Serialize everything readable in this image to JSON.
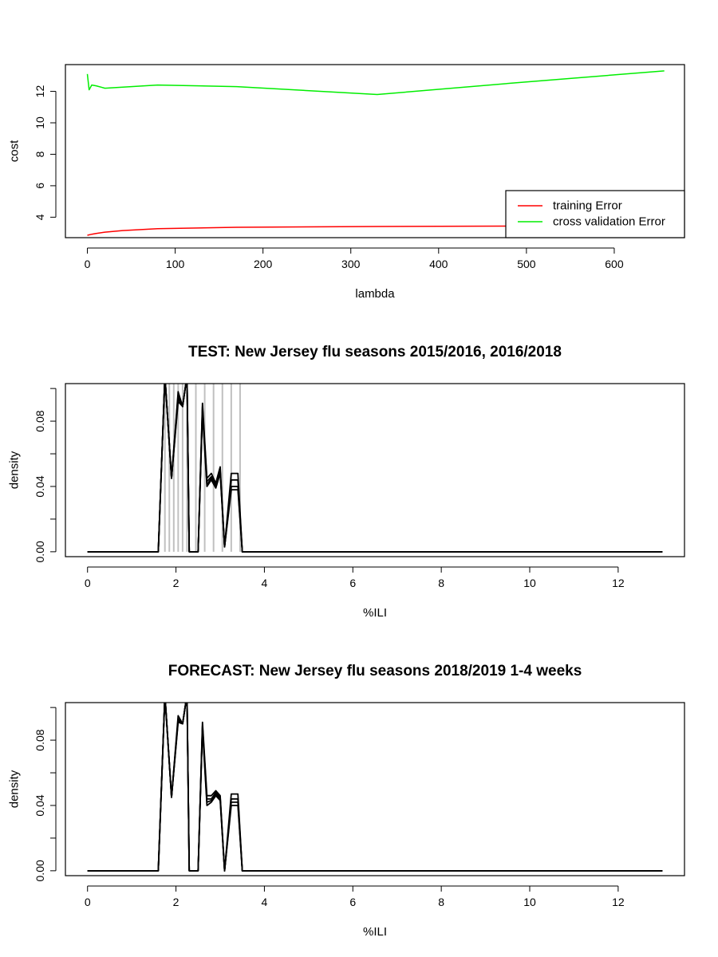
{
  "chart_data": [
    {
      "type": "line",
      "title": "",
      "xlabel": "lambda",
      "ylabel": "cost",
      "xlim": [
        -25,
        680
      ],
      "ylim": [
        2.7,
        13.7
      ],
      "xticks": [
        0,
        100,
        200,
        300,
        400,
        500,
        600
      ],
      "yticks": [
        4,
        6,
        8,
        10,
        12
      ],
      "legend": {
        "position": "bottom-right",
        "entries": [
          {
            "label": "training Error",
            "color": "#ff0000"
          },
          {
            "label": "cross validation Error",
            "color": "#00ee00"
          }
        ]
      },
      "series": [
        {
          "name": "training Error",
          "color": "#ff0000",
          "x": [
            0,
            5,
            10,
            20,
            40,
            80,
            170,
            330,
            500,
            657
          ],
          "y": [
            2.85,
            2.92,
            2.97,
            3.05,
            3.15,
            3.27,
            3.36,
            3.41,
            3.44,
            3.47
          ]
        },
        {
          "name": "cross validation Error",
          "color": "#00ee00",
          "x": [
            0,
            2,
            5,
            10,
            20,
            80,
            170,
            330,
            500,
            657
          ],
          "y": [
            13.1,
            12.1,
            12.4,
            12.35,
            12.2,
            12.4,
            12.3,
            11.8,
            12.6,
            13.3
          ]
        }
      ]
    },
    {
      "type": "line",
      "title": "TEST: New Jersey  flu seasons 2015/2016, 2016/2018",
      "xlabel": "%ILI",
      "ylabel": "density",
      "xlim": [
        -0.5,
        13.5
      ],
      "ylim": [
        -0.003,
        0.103
      ],
      "xticks": [
        0,
        2,
        4,
        6,
        8,
        10,
        12
      ],
      "yticks": [
        0.0,
        0.02,
        0.04,
        0.06,
        0.08,
        0.1
      ],
      "ytick_labels": [
        "0.00",
        "",
        "0.04",
        "",
        "0.08",
        ""
      ],
      "vlines": {
        "color": "#c0c0c0",
        "x": [
          1.75,
          1.85,
          1.95,
          2.05,
          2.15,
          2.25,
          2.45,
          2.65,
          2.85,
          3.05,
          3.25,
          3.45
        ]
      },
      "series": [
        {
          "name": "",
          "color": "#000000",
          "x": [
            0,
            1.6,
            1.75,
            1.9,
            2.05,
            2.15,
            2.25,
            2.3,
            2.5,
            2.6,
            2.7,
            2.8,
            2.9,
            3.0,
            3.1,
            3.25,
            3.4,
            3.5,
            13
          ],
          "y": [
            0,
            0,
            0.108,
            0.045,
            0.098,
            0.089,
            0.108,
            0,
            0,
            0.091,
            0.045,
            0.048,
            0.042,
            0.052,
            0.003,
            0.048,
            0.048,
            0,
            0
          ]
        },
        {
          "name": "",
          "color": "#000000",
          "x": [
            0,
            1.6,
            1.75,
            1.9,
            2.05,
            2.15,
            2.25,
            2.3,
            2.5,
            2.6,
            2.7,
            2.8,
            2.9,
            3.0,
            3.1,
            3.25,
            3.4,
            3.5,
            13
          ],
          "y": [
            0,
            0,
            0.108,
            0.045,
            0.096,
            0.089,
            0.108,
            0,
            0,
            0.089,
            0.043,
            0.046,
            0.041,
            0.05,
            0.003,
            0.044,
            0.044,
            0,
            0
          ]
        },
        {
          "name": "",
          "color": "#000000",
          "x": [
            0,
            1.6,
            1.75,
            1.9,
            2.05,
            2.15,
            2.25,
            2.3,
            2.5,
            2.6,
            2.7,
            2.8,
            2.9,
            3.0,
            3.1,
            3.25,
            3.4,
            3.5,
            13
          ],
          "y": [
            0,
            0,
            0.108,
            0.045,
            0.094,
            0.089,
            0.108,
            0,
            0,
            0.087,
            0.041,
            0.045,
            0.04,
            0.049,
            0.003,
            0.04,
            0.04,
            0,
            0
          ]
        },
        {
          "name": "",
          "color": "#000000",
          "x": [
            0,
            1.6,
            1.75,
            1.9,
            2.05,
            2.15,
            2.25,
            2.3,
            2.5,
            2.6,
            2.7,
            2.8,
            2.9,
            3.0,
            3.1,
            3.25,
            3.4,
            3.5,
            13
          ],
          "y": [
            0,
            0,
            0.108,
            0.045,
            0.092,
            0.089,
            0.108,
            0,
            0,
            0.085,
            0.04,
            0.044,
            0.039,
            0.048,
            0.003,
            0.038,
            0.038,
            0,
            0
          ]
        }
      ]
    },
    {
      "type": "line",
      "title": "FORECAST: New Jersey flu seasons 2018/2019 1-4 weeks",
      "xlabel": "%ILI",
      "ylabel": "density",
      "xlim": [
        -0.5,
        13.5
      ],
      "ylim": [
        -0.003,
        0.103
      ],
      "xticks": [
        0,
        2,
        4,
        6,
        8,
        10,
        12
      ],
      "yticks": [
        0.0,
        0.02,
        0.04,
        0.06,
        0.08,
        0.1
      ],
      "ytick_labels": [
        "0.00",
        "",
        "0.04",
        "",
        "0.08",
        ""
      ],
      "series": [
        {
          "name": "",
          "color": "#000000",
          "x": [
            0,
            1.6,
            1.75,
            1.9,
            2.05,
            2.15,
            2.25,
            2.3,
            2.5,
            2.6,
            2.7,
            2.8,
            2.9,
            3.0,
            3.1,
            3.25,
            3.4,
            3.5,
            13
          ],
          "y": [
            0,
            0,
            0.108,
            0.045,
            0.095,
            0.09,
            0.108,
            0,
            0,
            0.091,
            0.046,
            0.046,
            0.049,
            0.046,
            0.0,
            0.047,
            0.047,
            0,
            0
          ]
        },
        {
          "name": "",
          "color": "#000000",
          "x": [
            0,
            1.6,
            1.75,
            1.9,
            2.05,
            2.15,
            2.25,
            2.3,
            2.5,
            2.6,
            2.7,
            2.8,
            2.9,
            3.0,
            3.1,
            3.25,
            3.4,
            3.5,
            13
          ],
          "y": [
            0,
            0,
            0.108,
            0.045,
            0.093,
            0.09,
            0.108,
            0,
            0,
            0.089,
            0.044,
            0.044,
            0.048,
            0.045,
            0.0,
            0.044,
            0.044,
            0,
            0
          ]
        },
        {
          "name": "",
          "color": "#000000",
          "x": [
            0,
            1.6,
            1.75,
            1.9,
            2.05,
            2.15,
            2.25,
            2.3,
            2.5,
            2.6,
            2.7,
            2.8,
            2.9,
            3.0,
            3.1,
            3.25,
            3.4,
            3.5,
            13
          ],
          "y": [
            0,
            0,
            0.108,
            0.045,
            0.092,
            0.09,
            0.108,
            0,
            0,
            0.088,
            0.042,
            0.043,
            0.047,
            0.044,
            0.0,
            0.042,
            0.042,
            0,
            0
          ]
        },
        {
          "name": "",
          "color": "#000000",
          "x": [
            0,
            1.6,
            1.75,
            1.9,
            2.05,
            2.15,
            2.25,
            2.3,
            2.5,
            2.6,
            2.7,
            2.8,
            2.9,
            3.0,
            3.1,
            3.25,
            3.4,
            3.5,
            13
          ],
          "y": [
            0,
            0,
            0.108,
            0.045,
            0.091,
            0.09,
            0.108,
            0,
            0,
            0.087,
            0.04,
            0.042,
            0.046,
            0.043,
            0.0,
            0.04,
            0.04,
            0,
            0
          ]
        }
      ]
    }
  ]
}
